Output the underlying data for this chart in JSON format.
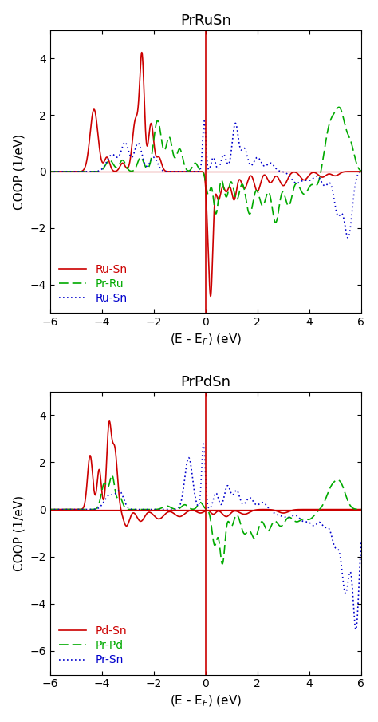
{
  "title1": "PrRuSn",
  "title2": "PrPdSn",
  "xlabel": "(E - E$_F$) (eV)",
  "ylabel": "COOP (1/eV)",
  "xlim": [
    -6,
    6
  ],
  "ylim1": [
    -5,
    5
  ],
  "ylim2": [
    -7,
    5
  ],
  "yticks1": [
    -4,
    -2,
    0,
    2,
    4
  ],
  "yticks2": [
    -6,
    -4,
    -2,
    0,
    2,
    4
  ],
  "color_red": "#cc0000",
  "color_green": "#00aa00",
  "color_blue": "#0000cc",
  "legend1": [
    "Ru-Sn",
    "Pr-Ru",
    "Ru-Sn"
  ],
  "legend2": [
    "Pd-Sn",
    "Pr-Pd",
    "Pr-Sn"
  ]
}
